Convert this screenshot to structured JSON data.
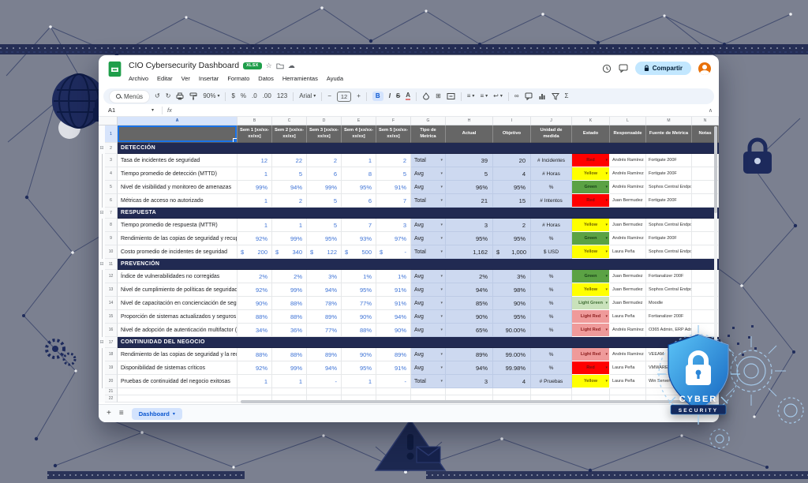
{
  "background": {
    "color": "#7b8090",
    "accent_navy": "#1d2a5e",
    "circuit_blue": "#a6c9e9"
  },
  "logo": {
    "line1": "CYBER",
    "line2": "SECURITY"
  },
  "icons": {
    "dropdown": "▾",
    "collapse_group": "⊟",
    "undo": "↺",
    "redo": "↻",
    "caret": "▾",
    "chevron_up": "∧",
    "plus": "+",
    "all_sheets": "≡",
    "star": "☆",
    "cloud": "☁",
    "borders": "⊞",
    "align": "≡",
    "wrap": "↩",
    "link": "∞",
    "minus": "−"
  },
  "window": {
    "titlebar": {
      "title": "CIO Cybersecurity Dashboard",
      "badge": "XLSX"
    },
    "menu_items": [
      "Archivo",
      "Editar",
      "Ver",
      "Insertar",
      "Formato",
      "Datos",
      "Herramientas",
      "Ayuda"
    ],
    "actions": {
      "share": "Compartir"
    },
    "toolbar": {
      "menus": "Menús",
      "zoom": "90%",
      "dollar": "$",
      "percent": "%",
      "dec0": ".0",
      "dec00": ".00",
      "numfmt": "123",
      "font": "Arial",
      "size": "12",
      "bold": "B",
      "italic": "I",
      "strike": "S",
      "color": "A",
      "sigma": "Σ"
    },
    "formula": {
      "cell_ref": "A1",
      "fx": "fx"
    },
    "sheet_tabs": {
      "active": "Dashboard"
    }
  },
  "grid": {
    "col_letters": [
      "A",
      "B",
      "C",
      "D",
      "E",
      "F",
      "G",
      "H",
      "I",
      "J",
      "K",
      "L",
      "M",
      "N"
    ],
    "headers": {
      "weeks": [
        "Sem 1 [xx/xx-xx/xx]",
        "Sem 2 [xx/xx-xx/xx]",
        "Sem 3 [xx/xx-xx/xx]",
        "Sem 4 [xx/xx-xx/xx]",
        "Sem 5 [xx/xx-xx/xx]"
      ],
      "tipo": "Tipo de Metrica",
      "actual": "Actual",
      "objetivo": "Objetivo",
      "unidad": "Unidad de medida",
      "estado": "Estado",
      "responsable": "Responsable",
      "fuente": "Fuente de Metrica",
      "notas": "Notas"
    },
    "estado_styles": {
      "Red": {
        "bg": "#ff0000",
        "fg": "#6f1010"
      },
      "Yellow": {
        "bg": "#ffff00",
        "fg": "#6b5d00"
      },
      "Green": {
        "bg": "#5ba244",
        "fg": "#173f17"
      },
      "Light Green": {
        "bg": "#c9e2bb",
        "fg": "#3f6d33"
      },
      "Light Red": {
        "bg": "#ef9a9a",
        "fg": "#8c1d1d"
      }
    },
    "sections": [
      {
        "row": 2,
        "title": "DETECCIÓN",
        "items": [
          {
            "row": 3,
            "name": "Tasa de incidentes de seguridad",
            "weeks": [
              "12",
              "22",
              "2",
              "1",
              "2"
            ],
            "tipo": "Total",
            "actual": "39",
            "objetivo": "20",
            "unidad": "# Incidentes",
            "estado": "Red",
            "responsable": "Andrés Ramírez",
            "fuente": "Fortigate 200F",
            "notas": ""
          },
          {
            "row": 4,
            "name": "Tiempo promedio de detección (MTTD)",
            "weeks": [
              "1",
              "5",
              "6",
              "8",
              "5"
            ],
            "tipo": "Avg",
            "actual": "5",
            "objetivo": "4",
            "unidad": "# Horas",
            "estado": "Yellow",
            "responsable": "Andrés Ramírez",
            "fuente": "Fortigate 200F",
            "notas": ""
          },
          {
            "row": 5,
            "name": "Nivel de visibilidad y monitoreo de amenazas",
            "weeks": [
              "99%",
              "94%",
              "99%",
              "95%",
              "91%"
            ],
            "tipo": "Avg",
            "actual": "96%",
            "objetivo": "95%",
            "unidad": "%",
            "estado": "Green",
            "responsable": "Andrés Ramírez",
            "fuente": "Sophos Central Endpoint",
            "notas": ""
          },
          {
            "row": 6,
            "name": "Métricas de acceso no autorizado",
            "weeks": [
              "1",
              "2",
              "5",
              "6",
              "7"
            ],
            "tipo": "Total",
            "actual": "21",
            "objetivo": "15",
            "unidad": "# Intentos",
            "estado": "Red",
            "responsable": "Juan Bermudez",
            "fuente": "Fortigate 200F",
            "notas": ""
          }
        ]
      },
      {
        "row": 7,
        "title": "RESPUESTA",
        "items": [
          {
            "row": 8,
            "name": "Tiempo promedio de respuesta (MTTR)",
            "weeks": [
              "1",
              "1",
              "5",
              "7",
              "3"
            ],
            "tipo": "Avg",
            "actual": "3",
            "objetivo": "2",
            "unidad": "# Horas",
            "estado": "Yellow",
            "responsable": "Juan Bermudez",
            "fuente": "Sophos Central Endpoint",
            "notas": ""
          },
          {
            "row": 9,
            "name": "Rendimiento de las copias de seguridad y recuperación",
            "weeks": [
              "92%",
              "99%",
              "95%",
              "93%",
              "97%"
            ],
            "tipo": "Avg",
            "actual": "95%",
            "objetivo": "95%",
            "unidad": "%",
            "estado": "Green",
            "responsable": "Andrés Ramírez",
            "fuente": "Fortigate 200F",
            "notas": ""
          },
          {
            "row": 10,
            "name": "Costo promedio de incidentes de seguridad",
            "weeks": [
              {
                "sym": "$",
                "val": "200"
              },
              {
                "sym": "$",
                "val": "340"
              },
              {
                "sym": "$",
                "val": "122"
              },
              {
                "sym": "$",
                "val": "500"
              },
              {
                "sym": "$",
                "val": "-"
              }
            ],
            "tipo": "Total",
            "actual": "1,162",
            "objetivo": {
              "sym": "$",
              "val": "1,000"
            },
            "unidad": "$ USD",
            "estado": "Yellow",
            "responsable": "Laura Peña",
            "fuente": "Sophos Central Endpoint",
            "notas": ""
          }
        ]
      },
      {
        "row": 11,
        "title": "PREVENCIÓN",
        "items": [
          {
            "row": 12,
            "name": "Índice de vulnerabilidades no corregidas",
            "weeks": [
              "2%",
              "2%",
              "3%",
              "1%",
              "1%"
            ],
            "tipo": "Avg",
            "actual": "2%",
            "objetivo": "3%",
            "unidad": "%",
            "estado": "Green",
            "responsable": "Juan Bermudez",
            "fuente": "Fortianalizer 200F",
            "notas": ""
          },
          {
            "row": 13,
            "name": "Nivel de cumplimiento de políticas de seguridad",
            "weeks": [
              "92%",
              "99%",
              "94%",
              "95%",
              "91%"
            ],
            "tipo": "Avg",
            "actual": "94%",
            "objetivo": "98%",
            "unidad": "%",
            "estado": "Yellow",
            "responsable": "Juan Bermudez",
            "fuente": "Sophos Central Endpoint",
            "notas": ""
          },
          {
            "row": 14,
            "name": "Nivel de capacitación en concienciación de seguridad",
            "weeks": [
              "90%",
              "88%",
              "78%",
              "77%",
              "91%"
            ],
            "tipo": "Avg",
            "actual": "85%",
            "objetivo": "90%",
            "unidad": "%",
            "estado": "Light Green",
            "responsable": "Juan Bermudez",
            "fuente": "Moodle",
            "notas": ""
          },
          {
            "row": 15,
            "name": "Proporción de sistemas actualizados y seguros",
            "weeks": [
              "88%",
              "88%",
              "89%",
              "90%",
              "94%"
            ],
            "tipo": "Avg",
            "actual": "90%",
            "objetivo": "95%",
            "unidad": "%",
            "estado": "Light Red",
            "responsable": "Laura Peña",
            "fuente": "Fortianalizer 200F",
            "notas": ""
          },
          {
            "row": 16,
            "name": "Nivel de adopción de autenticación multifactor (MFA)",
            "weeks": [
              "34%",
              "36%",
              "77%",
              "88%",
              "90%"
            ],
            "tipo": "Avg",
            "actual": "65%",
            "objetivo": "90.00%",
            "unidad": "%",
            "estado": "Light Red",
            "responsable": "Andrés Ramírez",
            "fuente": "O365 Admin, ERP Admin,",
            "notas": ""
          }
        ]
      },
      {
        "row": 17,
        "title": "CONTINUIDAD DEL NEGOCIO",
        "items": [
          {
            "row": 18,
            "name": "Rendimiento de las copias de seguridad y la recuperación",
            "weeks": [
              "88%",
              "88%",
              "89%",
              "90%",
              "89%"
            ],
            "tipo": "Avg",
            "actual": "89%",
            "objetivo": "99.00%",
            "unidad": "%",
            "estado": "Light Red",
            "responsable": "Andrés Ramírez",
            "fuente": "VEEAM",
            "notas": ""
          },
          {
            "row": 19,
            "name": "Disponibilidad de sistemas críticos",
            "weeks": [
              "92%",
              "99%",
              "94%",
              "95%",
              "91%"
            ],
            "tipo": "Avg",
            "actual": "94%",
            "objetivo": "99.98%",
            "unidad": "%",
            "estado": "Red",
            "responsable": "Laura Peña",
            "fuente": "VMWARE, HyperV",
            "notas": ""
          },
          {
            "row": 20,
            "name": "Pruebas de continuidad del negocio exitosas",
            "weeks": [
              "1",
              "1",
              "-",
              "1",
              "-"
            ],
            "tipo": "Total",
            "actual": "3",
            "objetivo": "4",
            "unidad": "# Pruebas",
            "estado": "Yellow",
            "responsable": "Laura Peña",
            "fuente": "Win Server Admin",
            "notas": ""
          }
        ]
      }
    ],
    "empty_rows": [
      "21",
      "22"
    ]
  }
}
